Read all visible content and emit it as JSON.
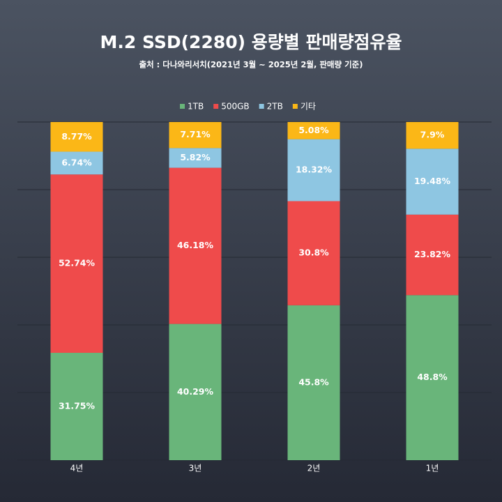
{
  "chart_data": {
    "type": "stacked_bar",
    "title": "M.2 SSD(2280) 용량별 판매량점유율",
    "subtitle": "출처 : 다나와리서치(2021년 3월 ~ 2025년 2월, 판매량 기준)",
    "categories": [
      "4년",
      "3년",
      "2년",
      "1년"
    ],
    "series": [
      {
        "name": "1TB",
        "color": "#69b57a",
        "values": [
          31.75,
          40.29,
          45.8,
          48.8
        ],
        "value_labels": [
          "31.75%",
          "40.29%",
          "45.8%",
          "48.8%"
        ]
      },
      {
        "name": "500GB",
        "color": "#ef4b4b",
        "values": [
          52.74,
          46.18,
          30.8,
          23.82
        ],
        "value_labels": [
          "52.74%",
          "46.18%",
          "30.8%",
          "23.82%"
        ]
      },
      {
        "name": "2TB",
        "color": "#8ec6e2",
        "values": [
          6.74,
          5.82,
          18.32,
          19.48
        ],
        "value_labels": [
          "6.74%",
          "5.82%",
          "18.32%",
          "19.48%"
        ]
      },
      {
        "name": "기타",
        "color": "#fbb717",
        "values": [
          8.77,
          7.71,
          5.08,
          7.9
        ],
        "value_labels": [
          "8.77%",
          "7.71%",
          "5.08%",
          "7.9%"
        ]
      }
    ],
    "ylim": [
      0,
      100
    ],
    "yticks": [
      0,
      20,
      40,
      60,
      80,
      100
    ],
    "grid": true,
    "legend": "top"
  }
}
